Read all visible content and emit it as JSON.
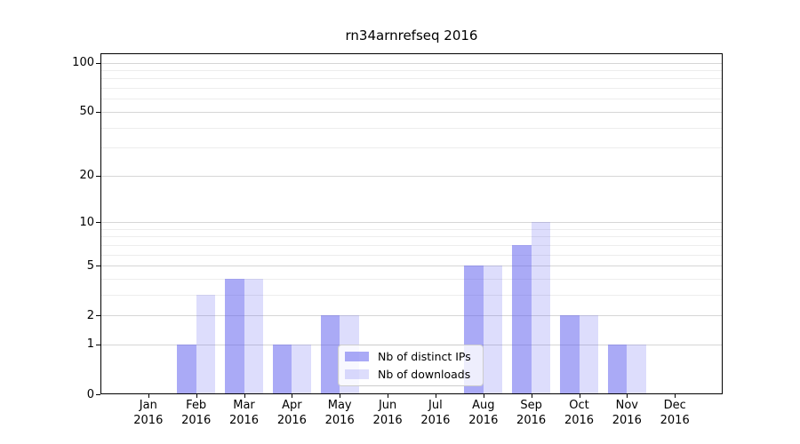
{
  "chart_data": {
    "type": "bar",
    "title": "rn34arnrefseq 2016",
    "months": [
      "Jan",
      "Feb",
      "Mar",
      "Apr",
      "May",
      "Jun",
      "Jul",
      "Aug",
      "Sep",
      "Oct",
      "Nov",
      "Dec"
    ],
    "year": "2016",
    "series": [
      {
        "name": "Nb of distinct IPs",
        "values": [
          0,
          1,
          4,
          1,
          2,
          0,
          0,
          5,
          7,
          2,
          1,
          0
        ],
        "fill": "rgba(85,85,238,0.5)"
      },
      {
        "name": "Nb of downloads",
        "values": [
          0,
          3,
          4,
          1,
          2,
          0,
          0,
          5,
          10,
          2,
          1,
          0
        ],
        "fill": "rgba(85,85,238,0.2)"
      }
    ],
    "y_axis": {
      "scale": "log1p",
      "ticks": [
        0,
        1,
        2,
        5,
        10,
        20,
        50,
        100
      ],
      "minor_gridlines": [
        3,
        4,
        6,
        7,
        8,
        9,
        30,
        40,
        60,
        70,
        80,
        90
      ]
    },
    "x_axis": {
      "tick_line1": [
        "Jan",
        "Feb",
        "Mar",
        "Apr",
        "May",
        "Jun",
        "Jul",
        "Aug",
        "Sep",
        "Oct",
        "Nov",
        "Dec"
      ],
      "tick_line2": "2016"
    },
    "grid": true,
    "legend_position": "lower-center"
  }
}
